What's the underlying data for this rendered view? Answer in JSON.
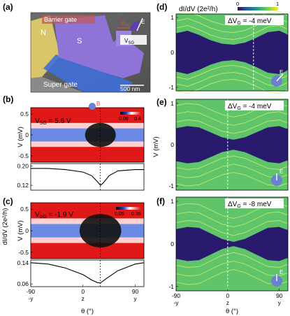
{
  "panel_letters": [
    "(a)",
    "(b)",
    "(c)",
    "(d)",
    "(e)",
    "(f)"
  ],
  "panel_a": {
    "label_n": "N",
    "label_s": "S",
    "label_barrier": "Barrier gate",
    "label_super": "Super gate",
    "scalebar": "500 nm",
    "inset_b": "B",
    "inset_b_sub": "SO",
    "inset_e": "E",
    "inset_vsg": "V",
    "inset_vsg_sub": "SG"
  },
  "panel_b": {
    "label_vsg": "V",
    "label_vsg_sub": "SG",
    "label_value": " = 5.6 V",
    "colorbar_min": "0.08",
    "colorbar_max": "0.4",
    "ylabel_top": "V (mV)",
    "yticks_top": [
      "0.5",
      "0",
      "-0.5"
    ],
    "yticks_bottom": [
      "0.20",
      "0.12"
    ],
    "inset_b": "B"
  },
  "panel_c": {
    "label_vsg": "V",
    "label_vsg_sub": "SG",
    "label_value": " = -1.9 V",
    "colorbar_min": "0.05",
    "colorbar_max": "0.35",
    "ylabel_top": "V (mV)",
    "yticks_top": [
      "0.5",
      "0",
      "-0.5"
    ],
    "yticks_bottom": [
      "0.14",
      "0.06"
    ]
  },
  "left_shared": {
    "ylabel_bottom": "dI/dV (2e²/h)",
    "xticks": [
      "-90",
      "0",
      "90"
    ],
    "xtick_dirs": [
      "-y",
      "z",
      "y"
    ],
    "xlabel": "θ (°)"
  },
  "panel_d": {
    "colorbar_title": "dI/dV (2e²/h)",
    "colorbar_min": "0",
    "colorbar_max": "1",
    "label_delta": "ΔV",
    "label_sub": "G",
    "label_value": " = -4 meV"
  },
  "panel_e": {
    "label_delta": "ΔV",
    "label_sub": "G",
    "label_value": " = -4 meV"
  },
  "panel_f": {
    "label_delta": "ΔV",
    "label_sub": "G",
    "label_value": " = -8 meV"
  },
  "right_shared": {
    "ylabel": "V (mV)",
    "yticks": [
      "1",
      "0",
      "-1"
    ],
    "xticks": [
      "-90",
      "0",
      "90"
    ],
    "xtick_dirs": [
      "-y",
      "z",
      "y"
    ],
    "xlabel": "θ (°)",
    "inset_e": "E"
  },
  "chart_data": [
    {
      "type": "line",
      "panel": "(b) bottom",
      "x": [
        -90,
        -60,
        -30,
        0,
        15,
        25,
        30,
        35,
        45,
        60,
        90,
        105
      ],
      "y": [
        0.19,
        0.19,
        0.185,
        0.175,
        0.16,
        0.135,
        0.12,
        0.13,
        0.16,
        0.18,
        0.185,
        0.185
      ],
      "xlabel": "θ (°)",
      "ylabel": "dI/dV (2e²/h)",
      "xlim": [
        -90,
        105
      ],
      "ylim": [
        0.1,
        0.21
      ]
    },
    {
      "type": "line",
      "panel": "(c) bottom",
      "x": [
        -90,
        -60,
        -30,
        0,
        15,
        25,
        30,
        40,
        60,
        90,
        105
      ],
      "y": [
        0.14,
        0.135,
        0.12,
        0.095,
        0.075,
        0.065,
        0.064,
        0.08,
        0.11,
        0.135,
        0.14
      ],
      "xlabel": "θ (°)",
      "ylabel": "dI/dV (2e²/h)",
      "xlim": [
        -90,
        105
      ],
      "ylim": [
        0.05,
        0.15
      ]
    },
    {
      "type": "heatmap",
      "panel": "(d)",
      "x_range": [
        -90,
        105
      ],
      "y_range": [
        -1.1,
        1.1
      ],
      "gap_edge": [
        0.55,
        0.62,
        0.5,
        0.35,
        0.25,
        0.22,
        0.28,
        0.42,
        0.58,
        0.62,
        0.55,
        0.5
      ],
      "gap_theta": [
        -90,
        -70,
        -50,
        -30,
        -10,
        10,
        30,
        50,
        70,
        90,
        100,
        105
      ],
      "xlabel": "θ (°)",
      "ylabel": "V (mV)"
    },
    {
      "type": "heatmap",
      "panel": "(e)",
      "x_range": [
        -90,
        105
      ],
      "y_range": [
        -1.1,
        1.1
      ],
      "gap_edge": [
        0.4,
        0.45,
        0.42,
        0.3,
        0.18,
        0.12,
        0.18,
        0.3,
        0.42,
        0.45,
        0.4,
        0.38
      ],
      "gap_theta": [
        -90,
        -70,
        -50,
        -30,
        -10,
        10,
        30,
        50,
        70,
        90,
        100,
        105
      ],
      "xlabel": "θ (°)",
      "ylabel": "V (mV)"
    },
    {
      "type": "heatmap",
      "panel": "(f)",
      "x_range": [
        -90,
        105
      ],
      "y_range": [
        -1.1,
        1.1
      ],
      "gap_edge": [
        0.35,
        0.4,
        0.38,
        0.25,
        0.12,
        0.05,
        0.12,
        0.25,
        0.38,
        0.4,
        0.35,
        0.33
      ],
      "gap_theta": [
        -90,
        -70,
        -50,
        -30,
        -10,
        10,
        30,
        50,
        70,
        90,
        100,
        105
      ],
      "xlabel": "θ (°)",
      "ylabel": "V (mV)"
    }
  ]
}
